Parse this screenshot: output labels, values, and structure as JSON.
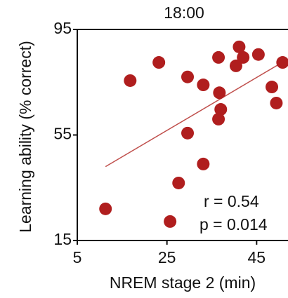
{
  "chart_data": {
    "type": "scatter",
    "title": "18:00",
    "x_label": "NREM stage 2 (min)",
    "y_label": "Learning ability (% correct)",
    "x": [
      11.3,
      16.8,
      23.2,
      29.6,
      33.1,
      36.5,
      41.1,
      42,
      40.4,
      45.4,
      50.8,
      36.7,
      37,
      36.5,
      48.4,
      49.4,
      29.6,
      33.1,
      27.6,
      25.7
    ],
    "values": [
      27,
      75.6,
      82.5,
      77,
      74,
      84.4,
      88.4,
      84.4,
      81.2,
      85.5,
      82.5,
      71,
      64.7,
      61,
      73.2,
      67.1,
      55.7,
      44,
      36.8,
      22.2
    ],
    "color": "#b01e1e",
    "fit": {
      "x": [
        11.3,
        51.2
      ],
      "y": [
        43,
        83
      ],
      "color": "#c0504d"
    },
    "annotations": [
      "r = 0.54",
      "p = 0.014"
    ],
    "xlim": [
      5,
      52
    ],
    "ylim": [
      15,
      95
    ],
    "xticks": [
      5,
      25,
      45
    ],
    "yticks": [
      15,
      55,
      95
    ],
    "grid": false
  }
}
